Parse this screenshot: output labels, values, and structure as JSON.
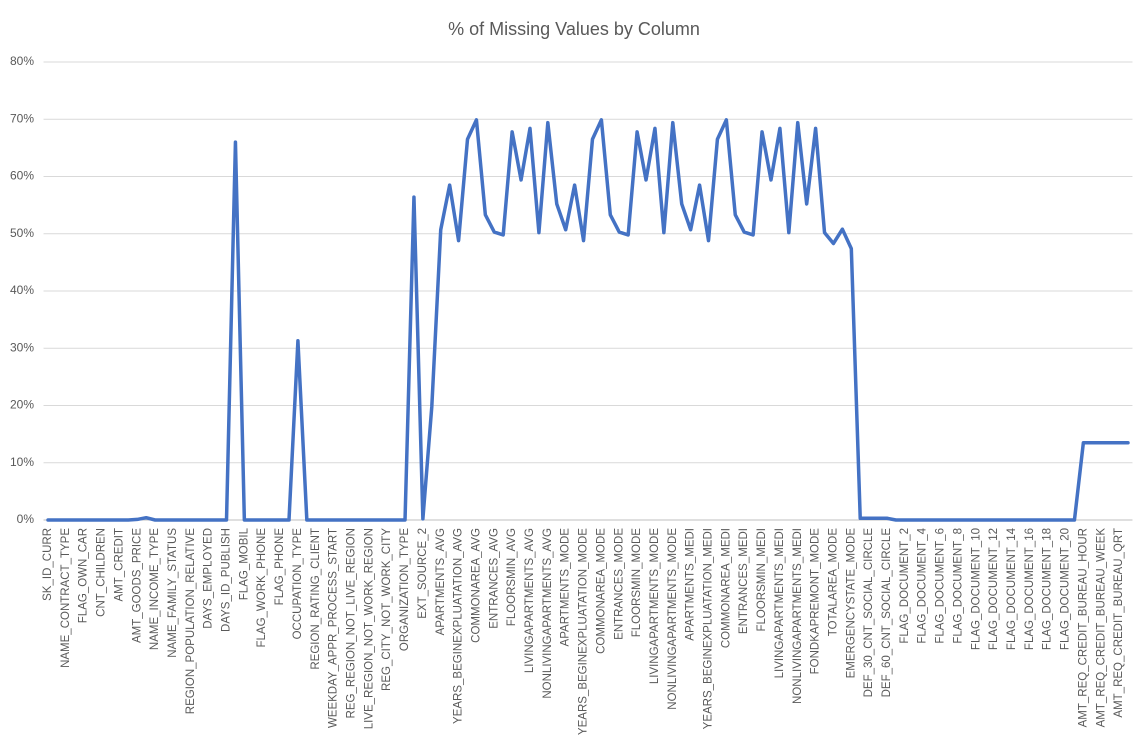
{
  "chart_data": {
    "type": "line",
    "title": "% of Missing Values by Column",
    "categories": [
      "SK_ID_CURR",
      null,
      "NAME_CONTRACT_TYPE",
      null,
      "FLAG_OWN_CAR",
      null,
      "CNT_CHILDREN",
      null,
      "AMT_CREDIT",
      null,
      "AMT_GOODS_PRICE",
      null,
      "NAME_INCOME_TYPE",
      null,
      "NAME_FAMILY_STATUS",
      null,
      "REGION_POPULATION_RELATIVE",
      null,
      "DAYS_EMPLOYED",
      null,
      "DAYS_ID_PUBLISH",
      null,
      "FLAG_MOBIL",
      null,
      "FLAG_WORK_PHONE",
      null,
      "FLAG_PHONE",
      null,
      "OCCUPATION_TYPE",
      null,
      "REGION_RATING_CLIENT",
      null,
      "WEEKDAY_APPR_PROCESS_START",
      null,
      "REG_REGION_NOT_LIVE_REGION",
      null,
      "LIVE_REGION_NOT_WORK_REGION",
      null,
      "REG_CITY_NOT_WORK_CITY",
      null,
      "ORGANIZATION_TYPE",
      null,
      "EXT_SOURCE_2",
      null,
      "APARTMENTS_AVG",
      null,
      "YEARS_BEGINEXPLUATATION_AVG",
      null,
      "COMMONAREA_AVG",
      null,
      "ENTRANCES_AVG",
      null,
      "FLOORSMIN_AVG",
      null,
      "LIVINGAPARTMENTS_AVG",
      null,
      "NONLIVINGAPARTMENTS_AVG",
      null,
      "APARTMENTS_MODE",
      null,
      "YEARS_BEGINEXPLUATATION_MODE",
      null,
      "COMMONAREA_MODE",
      null,
      "ENTRANCES_MODE",
      null,
      "FLOORSMIN_MODE",
      null,
      "LIVINGAPARTMENTS_MODE",
      null,
      "NONLIVINGAPARTMENTS_MODE",
      null,
      "APARTMENTS_MEDI",
      null,
      "YEARS_BEGINEXPLUATATION_MEDI",
      null,
      "COMMONAREA_MEDI",
      null,
      "ENTRANCES_MEDI",
      null,
      "FLOORSMIN_MEDI",
      null,
      "LIVINGAPARTMENTS_MEDI",
      null,
      "NONLIVINGAPARTMENTS_MEDI",
      null,
      "FONDKAPREMONT_MODE",
      null,
      "TOTALAREA_MODE",
      null,
      "EMERGENCYSTATE_MODE",
      null,
      "DEF_30_CNT_SOCIAL_CIRCLE",
      null,
      "DEF_60_CNT_SOCIAL_CIRCLE",
      null,
      "FLAG_DOCUMENT_2",
      null,
      "FLAG_DOCUMENT_4",
      null,
      "FLAG_DOCUMENT_6",
      null,
      "FLAG_DOCUMENT_8",
      null,
      "FLAG_DOCUMENT_10",
      null,
      "FLAG_DOCUMENT_12",
      null,
      "FLAG_DOCUMENT_14",
      null,
      "FLAG_DOCUMENT_16",
      null,
      "FLAG_DOCUMENT_18",
      null,
      "FLAG_DOCUMENT_20",
      null,
      "AMT_REQ_CREDIT_BUREAU_HOUR",
      null,
      "AMT_REQ_CREDIT_BUREAU_WEEK",
      null,
      "AMT_REQ_CREDIT_BUREAU_QRT",
      null
    ],
    "values": [
      0,
      0,
      0,
      0,
      0,
      0,
      0,
      0,
      0,
      0,
      0.1,
      0.4,
      0,
      0,
      0,
      0,
      0,
      0,
      0,
      0,
      0,
      66.0,
      0,
      0,
      0,
      0,
      0,
      0,
      31.3,
      0,
      0,
      0,
      0,
      0,
      0,
      0,
      0,
      0,
      0,
      0,
      0,
      56.4,
      0.2,
      19.8,
      50.7,
      58.5,
      48.8,
      66.5,
      69.9,
      53.3,
      50.3,
      49.8,
      67.8,
      59.4,
      68.4,
      50.2,
      69.4,
      55.2,
      50.7,
      58.5,
      48.8,
      66.5,
      69.9,
      53.3,
      50.3,
      49.8,
      67.8,
      59.4,
      68.4,
      50.2,
      69.4,
      55.2,
      50.7,
      58.5,
      48.8,
      66.5,
      69.9,
      53.3,
      50.3,
      49.8,
      67.8,
      59.4,
      68.4,
      50.2,
      69.4,
      55.2,
      68.4,
      50.2,
      48.3,
      50.8,
      47.4,
      0.3,
      0.3,
      0.3,
      0.3,
      0,
      0,
      0,
      0,
      0,
      0,
      0,
      0,
      0,
      0,
      0,
      0,
      0,
      0,
      0,
      0,
      0,
      0,
      0,
      0,
      0,
      13.5,
      13.5,
      13.5,
      13.5,
      13.5,
      13.5
    ],
    "color": "#4472c4",
    "ylim": [
      0,
      80
    ],
    "yticks": [
      {
        "value": 0,
        "label": "0%"
      },
      {
        "value": 10,
        "label": "10%"
      },
      {
        "value": 20,
        "label": "20%"
      },
      {
        "value": 30,
        "label": "30%"
      },
      {
        "value": 40,
        "label": "40%"
      },
      {
        "value": 50,
        "label": "50%"
      },
      {
        "value": 60,
        "label": "60%"
      },
      {
        "value": 70,
        "label": "70%"
      },
      {
        "value": 80,
        "label": "80%"
      }
    ],
    "grid": true
  }
}
